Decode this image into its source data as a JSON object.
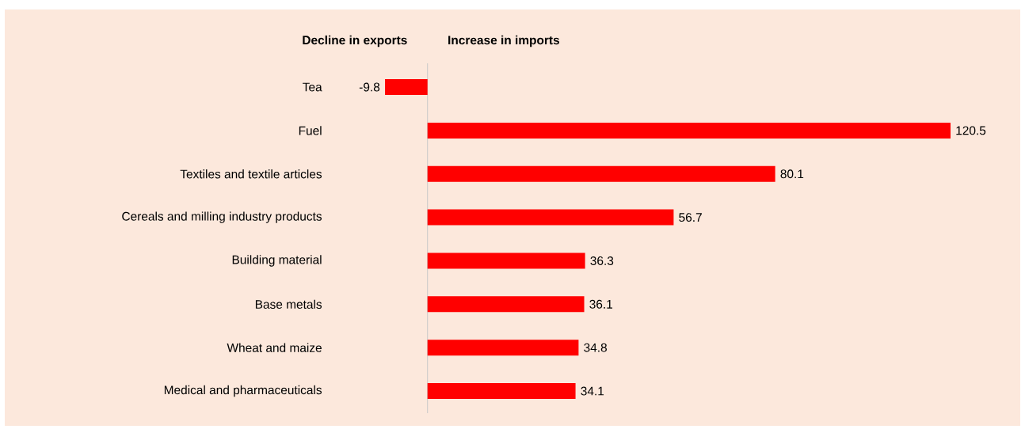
{
  "chart_data": {
    "type": "bar",
    "orientation": "horizontal",
    "categories": [
      "Tea",
      "Fuel",
      "Textiles and textile articles",
      "Cereals and milling industry products",
      "Building material",
      "Base metals",
      "Wheat and maize",
      "Medical and pharmaceuticals"
    ],
    "values": [
      -9.8,
      120.5,
      80.1,
      56.7,
      36.3,
      36.1,
      34.8,
      34.1
    ],
    "color": "#ff0000",
    "data_labels": true,
    "annotations": [
      "Decline in exports",
      "Increase in imports"
    ]
  }
}
